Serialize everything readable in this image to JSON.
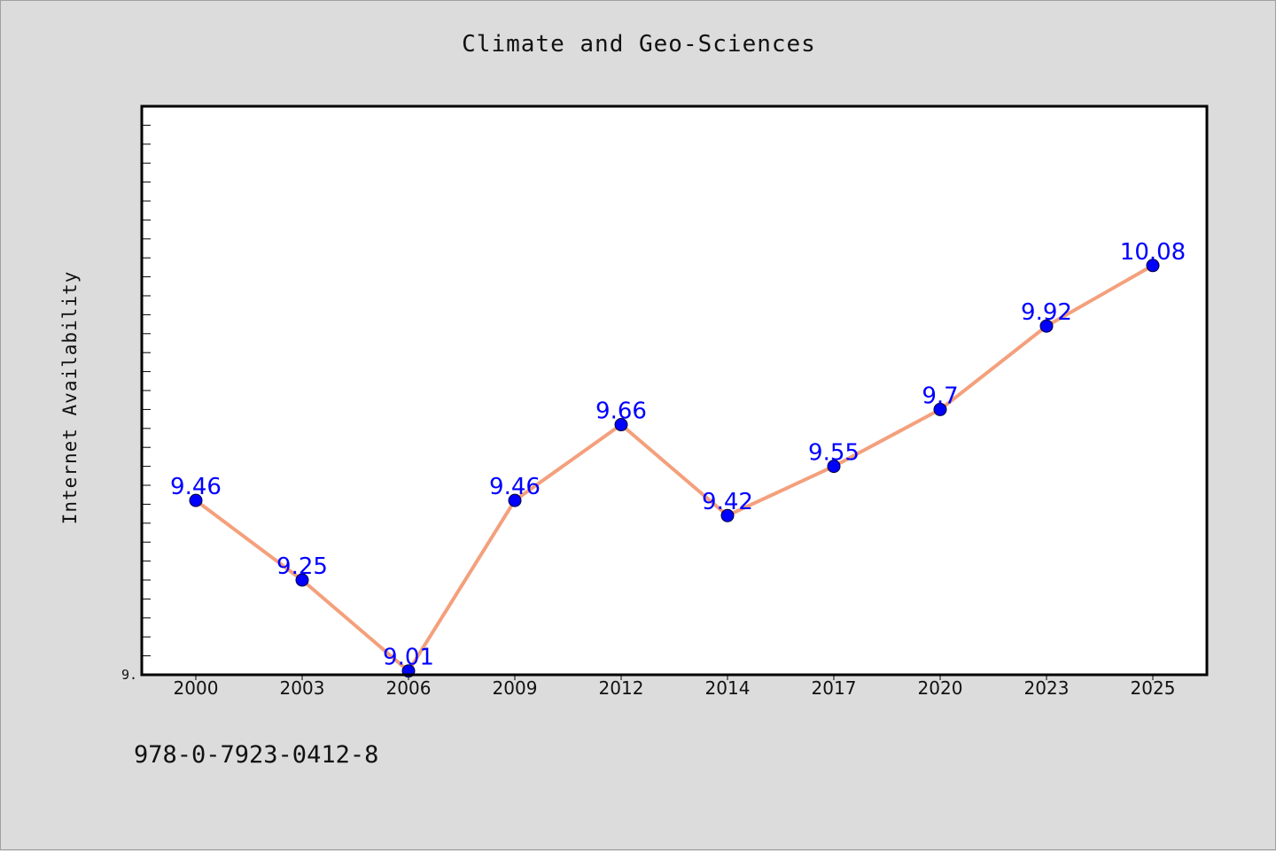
{
  "chart_data": {
    "type": "line",
    "title": "Climate and Geo-Sciences",
    "xlabel": "",
    "ylabel": "Internet Availability",
    "categories": [
      "2000",
      "2003",
      "2006",
      "2009",
      "2012",
      "2014",
      "2017",
      "2020",
      "2023",
      "2025"
    ],
    "series": [
      {
        "values": [
          9.46,
          9.25,
          9.01,
          9.46,
          9.66,
          9.42,
          9.55,
          9.7,
          9.92,
          10.08
        ]
      }
    ],
    "data_labels": [
      "9.46",
      "9.25",
      "9.01",
      "9.46",
      "9.66",
      "9.42",
      "9.55",
      "9.7",
      "9.92",
      "10.08"
    ],
    "y_tick_labels": [
      "9."
    ],
    "ylim": [
      9.0,
      10.5
    ],
    "grid": false,
    "line_color": "#f4a07c",
    "marker_color": "#0000ff",
    "label_color": "#0000ff",
    "footer_text": "978-0-7923-0412-8"
  }
}
